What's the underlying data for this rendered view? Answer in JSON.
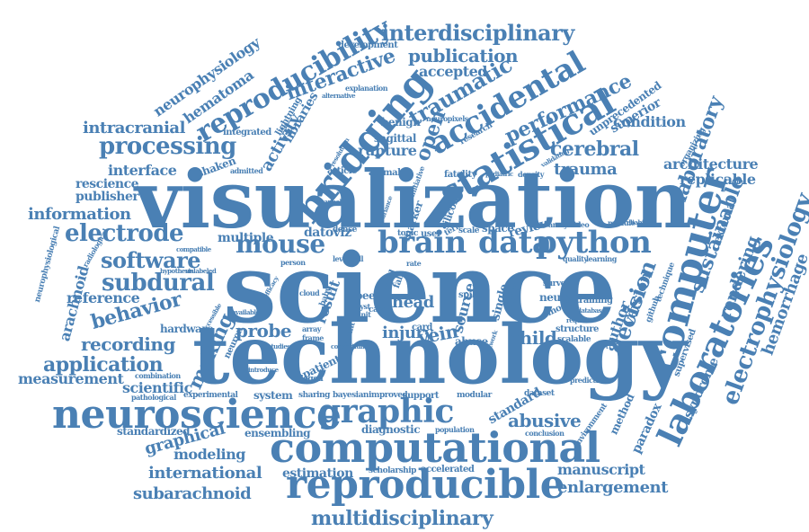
{
  "color": "#4a80b4",
  "words": [
    "visualization",
    "science",
    "technology",
    "neuroscience",
    "computational",
    "reproducible",
    "computer",
    "bridging",
    "reproducibility",
    "statistical",
    "accidental",
    "laboratories",
    "brain",
    "mouse",
    "data",
    "python",
    "graphic",
    "interdisciplinary",
    "multidisciplinary",
    "electrophysiology",
    "laboratory",
    "sustainable",
    "processing",
    "electrode",
    "software",
    "subdural",
    "behavior",
    "application",
    "decision",
    "traumatic",
    "interactive",
    "publication",
    "performance",
    "cerebral",
    "trauma",
    "hemorrhage",
    "probe",
    "recording",
    "making",
    "vein",
    "injury",
    "child",
    "abusive",
    "manuscript",
    "enlargement",
    "subarachnoid",
    "international",
    "graphical",
    "modeling",
    "architecture",
    "replicable",
    "information",
    "interface",
    "publisher",
    "rescience",
    "measurement",
    "scientific",
    "reference",
    "arachnoid",
    "neurophysiology",
    "hematoma",
    "intracranial",
    "activity",
    "libraries",
    "open",
    "accepted",
    "condition",
    "superior",
    "unprecedented",
    "rendering",
    "author",
    "version",
    "syndrome",
    "paradox",
    "method",
    "estimation",
    "standard",
    "diagnostic",
    "standardized",
    "ensembling",
    "hardware",
    "system",
    "result",
    "head",
    "source",
    "review",
    "space",
    "multiple",
    "datoviz",
    "rupture",
    "article",
    "fatality",
    "animal",
    "sagittal",
    "benign",
    "research",
    "development",
    "explanation",
    "shaken",
    "integrated",
    "admitted",
    "lightning",
    "alternative",
    "neuropixels",
    "marker",
    "silicon",
    "single",
    "patient",
    "neuron",
    "frame",
    "peer",
    "cloud",
    "baby",
    "infant",
    "abuse",
    "neural",
    "model",
    "survey",
    "structure",
    "scalable",
    "training",
    "prediction",
    "external",
    "supervised",
    "organizing",
    "github",
    "technique",
    "quality",
    "learning",
    "module",
    "reliability",
    "dataset",
    "conclusion",
    "environment",
    "population",
    "scholarship",
    "accelerated",
    "sharing",
    "bayesian",
    "improved",
    "support",
    "modular",
    "experimental",
    "pathological",
    "combination",
    "introduce",
    "studies",
    "unlabeled",
    "hypothesis",
    "compatible",
    "radiological",
    "neurophysiological",
    "person",
    "level",
    "cell",
    "dense",
    "topic",
    "user",
    "term",
    "scale",
    "spike",
    "more",
    "fall",
    "card",
    "case",
    "fall",
    "alleged",
    "accessible",
    "available",
    "efficacy",
    "oriented",
    "funding",
    "network",
    "require",
    "database",
    "video",
    "analyse",
    "density",
    "pediatric",
    "validating",
    "collection",
    "motive",
    "entire",
    "consortium",
    "citation",
    "array",
    "concern",
    "unit",
    "cyst",
    "tool",
    "valid",
    "rate",
    "stake",
    "channel",
    "resolution",
    "established",
    "invariance",
    "initiative",
    "hospital",
    "marker",
    "journal"
  ]
}
